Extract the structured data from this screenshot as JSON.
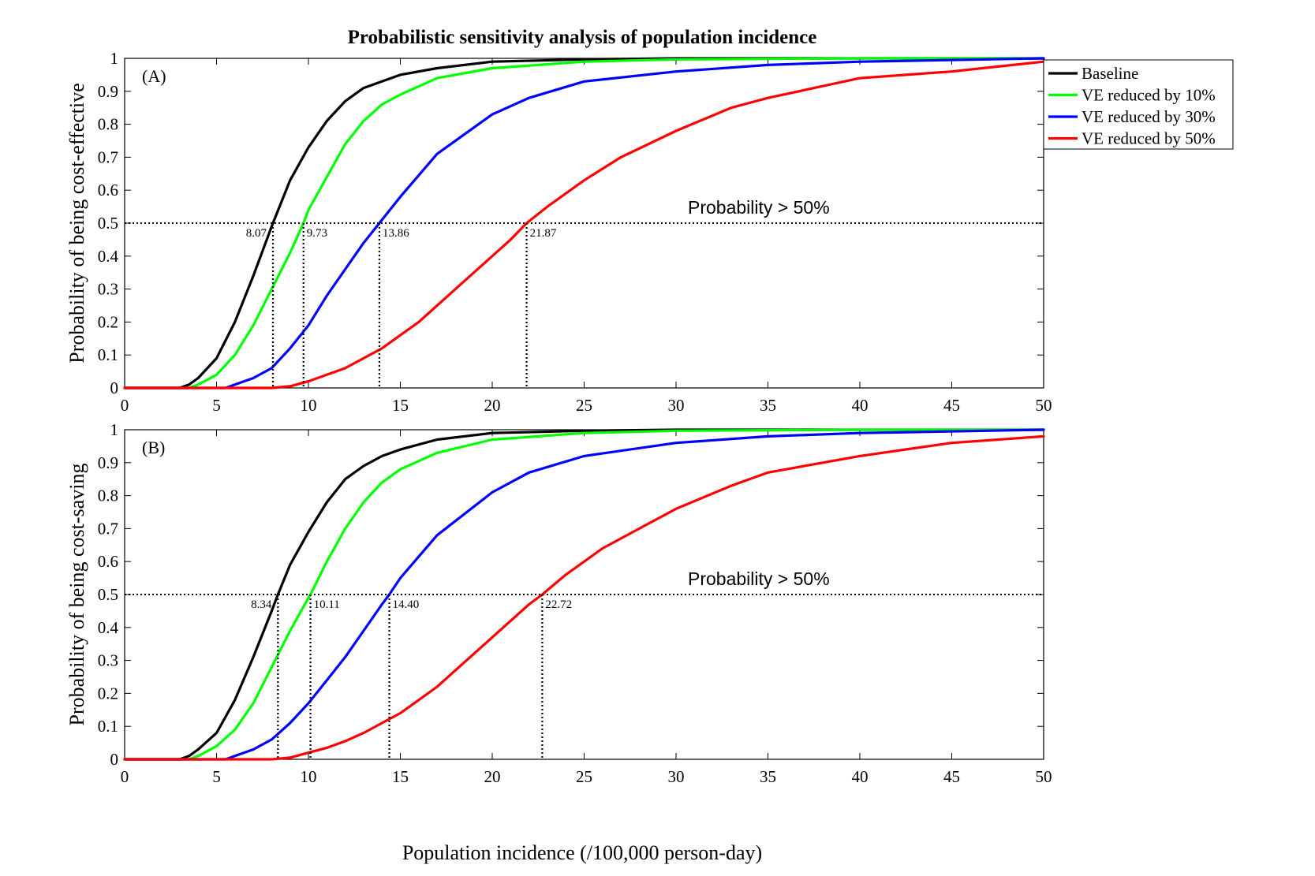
{
  "figure_title": "Probabilistic sensitivity analysis of population incidence",
  "x_axis_label": "Population incidence (/100,000 person-day)",
  "legend": [
    {
      "name": "Baseline",
      "color": "#000000"
    },
    {
      "name": "VE reduced by 10%",
      "color": "#00ff00"
    },
    {
      "name": "VE reduced by 30%",
      "color": "#0000ff"
    },
    {
      "name": "VE reduced by 50%",
      "color": "#ff0000"
    }
  ],
  "chart_data": [
    {
      "type": "line",
      "panel_label": "(A)",
      "ylabel": "Probability of being cost-effective",
      "xlim": [
        0,
        50
      ],
      "ylim": [
        0,
        1
      ],
      "xticks": [
        0,
        5,
        10,
        15,
        20,
        25,
        30,
        35,
        40,
        45,
        50
      ],
      "yticks": [
        0,
        0.1,
        0.2,
        0.3,
        0.4,
        0.5,
        0.6,
        0.7,
        0.8,
        0.9,
        1
      ],
      "threshold": {
        "y": 0.5,
        "label": "Probability > 50%",
        "label_x": 34.5
      },
      "series": [
        {
          "name": "Baseline",
          "color": "#000000",
          "x": [
            0,
            3,
            3.5,
            4,
            5,
            6,
            7,
            8,
            8.07,
            9,
            10,
            11,
            12,
            13,
            14,
            15,
            17,
            20,
            25,
            30,
            50
          ],
          "y": [
            0,
            0,
            0.01,
            0.03,
            0.09,
            0.2,
            0.34,
            0.49,
            0.5,
            0.63,
            0.73,
            0.81,
            0.87,
            0.91,
            0.93,
            0.95,
            0.97,
            0.99,
            0.997,
            1,
            1
          ]
        },
        {
          "name": "VE reduced by 10%",
          "color": "#00ff00",
          "x": [
            0,
            3.5,
            4,
            5,
            6,
            7,
            8,
            9,
            9.73,
            10,
            11,
            12,
            13,
            14,
            15,
            17,
            20,
            25,
            30,
            40,
            50
          ],
          "y": [
            0,
            0,
            0.01,
            0.04,
            0.1,
            0.19,
            0.3,
            0.41,
            0.5,
            0.54,
            0.64,
            0.74,
            0.81,
            0.86,
            0.89,
            0.94,
            0.97,
            0.99,
            0.997,
            1,
            1
          ]
        },
        {
          "name": "VE reduced by 30%",
          "color": "#0000ff",
          "x": [
            0,
            5.5,
            6,
            7,
            8,
            9,
            10,
            11,
            12,
            13,
            13.86,
            15,
            17,
            20,
            22,
            25,
            30,
            35,
            40,
            50
          ],
          "y": [
            0,
            0,
            0.01,
            0.03,
            0.06,
            0.12,
            0.19,
            0.28,
            0.36,
            0.44,
            0.5,
            0.58,
            0.71,
            0.83,
            0.88,
            0.93,
            0.96,
            0.98,
            0.99,
            1
          ]
        },
        {
          "name": "VE reduced by 50%",
          "color": "#ff0000",
          "x": [
            0,
            8,
            9,
            10,
            11,
            12,
            13,
            14,
            15,
            16,
            17,
            18,
            19,
            20,
            21,
            21.87,
            23,
            25,
            27,
            30,
            33,
            35,
            40,
            45,
            50
          ],
          "y": [
            0,
            0,
            0.005,
            0.02,
            0.04,
            0.06,
            0.09,
            0.12,
            0.16,
            0.2,
            0.25,
            0.3,
            0.35,
            0.4,
            0.45,
            0.5,
            0.55,
            0.63,
            0.7,
            0.78,
            0.85,
            0.88,
            0.94,
            0.96,
            0.99
          ]
        }
      ],
      "crossings": [
        {
          "x": 8.07,
          "label": "8.07",
          "side": "left"
        },
        {
          "x": 9.73,
          "label": "9.73",
          "side": "right"
        },
        {
          "x": 13.86,
          "label": "13.86",
          "side": "right"
        },
        {
          "x": 21.87,
          "label": "21.87",
          "side": "right"
        }
      ]
    },
    {
      "type": "line",
      "panel_label": "(B)",
      "ylabel": "Probability of being cost-saving",
      "xlabel": "Population incidence (/100,000 person-day)",
      "xlim": [
        0,
        50
      ],
      "ylim": [
        0,
        1
      ],
      "xticks": [
        0,
        5,
        10,
        15,
        20,
        25,
        30,
        35,
        40,
        45,
        50
      ],
      "yticks": [
        0,
        0.1,
        0.2,
        0.3,
        0.4,
        0.5,
        0.6,
        0.7,
        0.8,
        0.9,
        1
      ],
      "threshold": {
        "y": 0.5,
        "label": "Probability > 50%",
        "label_x": 34.5
      },
      "series": [
        {
          "name": "Baseline",
          "color": "#000000",
          "x": [
            0,
            3,
            3.5,
            4,
            5,
            6,
            7,
            8,
            8.34,
            9,
            10,
            11,
            12,
            13,
            14,
            15,
            17,
            20,
            25,
            30,
            50
          ],
          "y": [
            0,
            0,
            0.01,
            0.03,
            0.08,
            0.18,
            0.31,
            0.45,
            0.5,
            0.59,
            0.69,
            0.78,
            0.85,
            0.89,
            0.92,
            0.94,
            0.97,
            0.99,
            0.997,
            1,
            1
          ]
        },
        {
          "name": "VE reduced by 10%",
          "color": "#00ff00",
          "x": [
            0,
            3.5,
            4,
            5,
            6,
            7,
            8,
            9,
            10,
            10.11,
            11,
            12,
            13,
            14,
            15,
            17,
            20,
            25,
            30,
            40,
            50
          ],
          "y": [
            0,
            0,
            0.01,
            0.04,
            0.09,
            0.17,
            0.28,
            0.39,
            0.49,
            0.5,
            0.6,
            0.7,
            0.78,
            0.84,
            0.88,
            0.93,
            0.97,
            0.99,
            0.997,
            1,
            1
          ]
        },
        {
          "name": "VE reduced by 30%",
          "color": "#0000ff",
          "x": [
            0,
            5.5,
            6,
            7,
            8,
            9,
            10,
            11,
            12,
            13,
            14,
            14.4,
            15,
            17,
            20,
            22,
            25,
            30,
            35,
            40,
            50
          ],
          "y": [
            0,
            0,
            0.01,
            0.03,
            0.06,
            0.11,
            0.17,
            0.24,
            0.31,
            0.39,
            0.47,
            0.5,
            0.55,
            0.68,
            0.81,
            0.87,
            0.92,
            0.96,
            0.98,
            0.99,
            1
          ]
        },
        {
          "name": "VE reduced by 50%",
          "color": "#ff0000",
          "x": [
            0,
            8,
            9,
            10,
            11,
            12,
            13,
            14,
            15,
            16,
            17,
            18,
            19,
            20,
            21,
            22,
            22.72,
            24,
            26,
            28,
            30,
            33,
            35,
            40,
            45,
            50
          ],
          "y": [
            0,
            0,
            0.005,
            0.02,
            0.035,
            0.055,
            0.08,
            0.11,
            0.14,
            0.18,
            0.22,
            0.27,
            0.32,
            0.37,
            0.42,
            0.47,
            0.5,
            0.56,
            0.64,
            0.7,
            0.76,
            0.83,
            0.87,
            0.92,
            0.96,
            0.98
          ]
        }
      ],
      "crossings": [
        {
          "x": 8.34,
          "label": "8.34",
          "side": "left"
        },
        {
          "x": 10.11,
          "label": "10.11",
          "side": "right"
        },
        {
          "x": 14.4,
          "label": "14.40",
          "side": "right"
        },
        {
          "x": 22.72,
          "label": "22.72",
          "side": "right"
        }
      ]
    }
  ]
}
